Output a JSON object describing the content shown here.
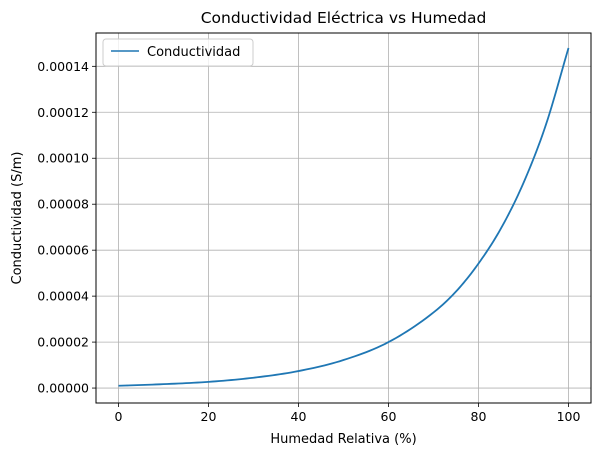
{
  "chart_data": {
    "type": "line",
    "title": "Conductividad Eléctrica vs Humedad",
    "xlabel": "Humedad Relativa (%)",
    "ylabel": "Conductividad (S/m)",
    "xlim": [
      -5,
      105
    ],
    "ylim": [
      -6.5e-06,
      0.0001545
    ],
    "x_ticks": [
      0,
      20,
      40,
      60,
      80,
      100
    ],
    "x_tick_labels": [
      "0",
      "20",
      "40",
      "60",
      "80",
      "100"
    ],
    "y_ticks": [
      0,
      2e-05,
      4e-05,
      6e-05,
      8e-05,
      0.0001,
      0.00012,
      0.00014
    ],
    "y_tick_labels": [
      "0.00000",
      "0.00002",
      "0.00004",
      "0.00006",
      "0.00008",
      "0.00010",
      "0.00012",
      "0.00014"
    ],
    "grid": true,
    "legend_position": "upper-left",
    "line_color": "#1f77b4",
    "grid_color": "#b0b0b0",
    "series": [
      {
        "name": "Conductividad",
        "x": [
          0,
          10,
          20,
          30,
          40,
          50,
          60,
          70,
          75,
          80,
          85,
          90,
          95,
          100
        ],
        "values": [
          1e-06,
          1.7e-06,
          2.7e-06,
          4.5e-06,
          7.4e-06,
          1.22e-05,
          2e-05,
          3.29e-05,
          4.2e-05,
          5.42e-05,
          6.95e-05,
          8.93e-05,
          0.0001147,
          0.000148
        ]
      }
    ]
  }
}
